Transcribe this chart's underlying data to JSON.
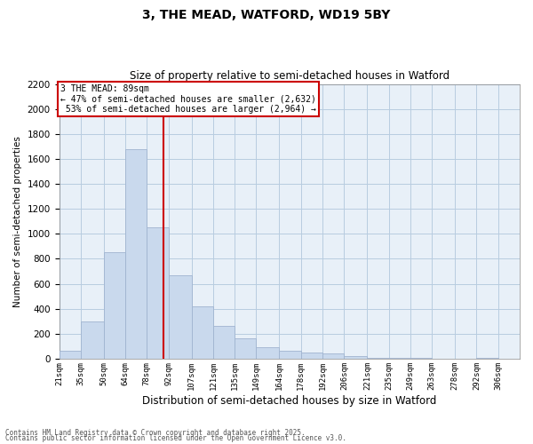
{
  "title1": "3, THE MEAD, WATFORD, WD19 5BY",
  "title2": "Size of property relative to semi-detached houses in Watford",
  "xlabel": "Distribution of semi-detached houses by size in Watford",
  "ylabel": "Number of semi-detached properties",
  "property_label": "3 THE MEAD: 89sqm",
  "pct_smaller": 47,
  "pct_larger": 53,
  "count_smaller": 2632,
  "count_larger": 2964,
  "bin_labels": [
    "21sqm",
    "35sqm",
    "50sqm",
    "64sqm",
    "78sqm",
    "92sqm",
    "107sqm",
    "121sqm",
    "135sqm",
    "149sqm",
    "164sqm",
    "178sqm",
    "192sqm",
    "206sqm",
    "221sqm",
    "235sqm",
    "249sqm",
    "263sqm",
    "278sqm",
    "292sqm",
    "306sqm"
  ],
  "bar_heights": [
    60,
    300,
    850,
    1680,
    1050,
    670,
    420,
    260,
    160,
    90,
    60,
    50,
    40,
    20,
    10,
    5,
    3,
    2,
    1,
    5,
    2
  ],
  "bin_edges": [
    21,
    35,
    50,
    64,
    78,
    92,
    107,
    121,
    135,
    149,
    164,
    178,
    192,
    206,
    221,
    235,
    249,
    263,
    278,
    292,
    306,
    320
  ],
  "bar_color": "#c9d9ed",
  "bar_edge_color": "#a0b4d0",
  "vline_color": "#cc0000",
  "vline_x": 89,
  "ylim_max": 2200,
  "yticks": [
    0,
    200,
    400,
    600,
    800,
    1000,
    1200,
    1400,
    1600,
    1800,
    2000,
    2200
  ],
  "grid_color": "#b8cce0",
  "bg_color": "#e8f0f8",
  "footnote1": "Contains HM Land Registry data © Crown copyright and database right 2025.",
  "footnote2": "Contains public sector information licensed under the Open Government Licence v3.0."
}
